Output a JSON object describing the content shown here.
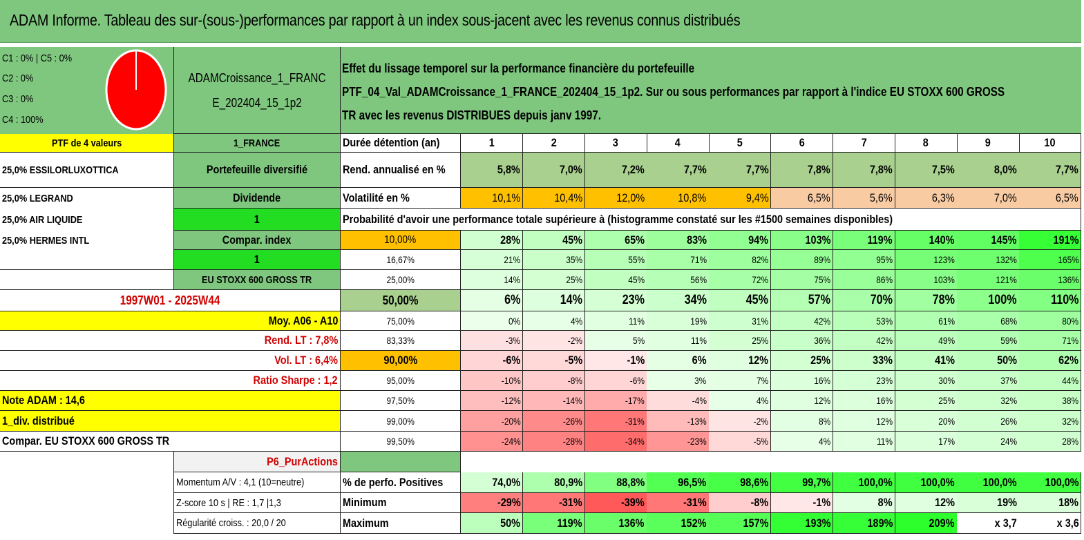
{
  "title": "ADAM Informe. Tableau des sur-(sous-)performances par rapport à un index sous-jacent avec les revenus connus distribués",
  "colors": {
    "green": "#7fc77f",
    "bright_green": "#22dd22",
    "yellow": "#ffff00",
    "orange": "#ffc000",
    "pie": "#ff0000"
  },
  "classes": {
    "line1": "C1 : 0% | C5 : 0%",
    "line2": "C2 : 0%",
    "line3": "C3 : 0%",
    "line4": "C4 : 100%"
  },
  "pie_chart": {
    "type": "pie",
    "slices": [
      {
        "label": "C4",
        "value": 100
      }
    ]
  },
  "portfolio": {
    "name_line1": "ADAMCroissance_1_FRANC",
    "name_line2": "E_202404_15_1p2",
    "count_label": "PTF de 4 valeurs",
    "country": "1_FRANCE",
    "holdings": [
      "25,0% ESSILORLUXOTTICA",
      "25,0% LEGRAND",
      "25,0% AIR LIQUIDE",
      "25,0% HERMES INTL"
    ]
  },
  "description": {
    "line1": "Effet du lissage temporel sur la performance financière du portefeuille",
    "line2": "PTF_04_Val_ADAMCroissance_1_FRANCE_202404_15_1p2. Sur ou sous performances par rapport à l'indice EU STOXX 600 GROSS",
    "line3": "TR avec les revenus DISTRIBUES depuis janv 1997."
  },
  "info": {
    "diversified": "Portefeuille diversifié",
    "dividend": "Dividende",
    "one_a": "1",
    "compar_index": "Compar. index",
    "one_b": "1",
    "index_name": "EU STOXX 600 GROSS TR",
    "period": "1997W01 - 2025W44",
    "avg": "Moy. A06 - A10",
    "rend_lt": "Rend. LT : 7,8%",
    "vol_lt": "Vol. LT : 6,4%",
    "sharpe": "Ratio Sharpe : 1,2",
    "note": "Note ADAM : 14,6",
    "div": "1_div. distribué",
    "compar_full": "Compar. EU STOXX 600 GROSS TR",
    "p6": "P6_PurActions",
    "momentum": "Momentum A/V : 4,1 (10=neutre)",
    "zscore": "Z-score 10 s | RE : 1,7 |1,3",
    "regularite": "Régularité croiss. : 20,0 / 20"
  },
  "table": {
    "duration_label": "Durée détention (an)",
    "years": [
      "1",
      "2",
      "3",
      "4",
      "5",
      "6",
      "7",
      "8",
      "9",
      "10"
    ],
    "rend_label": "Rend. annualisé en %",
    "rend": [
      "5,8%",
      "7,0%",
      "7,2%",
      "7,7%",
      "7,7%",
      "7,8%",
      "7,8%",
      "7,5%",
      "8,0%",
      "7,7%"
    ],
    "vol_label": "Volatilité en %",
    "vol": [
      "10,1%",
      "10,4%",
      "12,0%",
      "10,8%",
      "9,4%",
      "6,5%",
      "5,6%",
      "6,3%",
      "7,0%",
      "6,5%"
    ],
    "prob_title": "Probabilité d'avoir une performance totale supérieure à (histogramme constaté sur les #1500 semaines disponibles)",
    "prob_rows": [
      {
        "p": "10,00%",
        "v": [
          "28%",
          "45%",
          "65%",
          "83%",
          "94%",
          "103%",
          "119%",
          "140%",
          "145%",
          "191%"
        ]
      },
      {
        "p": "16,67%",
        "v": [
          "21%",
          "35%",
          "55%",
          "71%",
          "82%",
          "89%",
          "95%",
          "123%",
          "132%",
          "165%"
        ]
      },
      {
        "p": "25,00%",
        "v": [
          "14%",
          "25%",
          "45%",
          "56%",
          "72%",
          "75%",
          "86%",
          "103%",
          "121%",
          "136%"
        ]
      },
      {
        "p": "50,00%",
        "v": [
          "6%",
          "14%",
          "23%",
          "34%",
          "45%",
          "57%",
          "70%",
          "78%",
          "100%",
          "110%"
        ]
      },
      {
        "p": "75,00%",
        "v": [
          "0%",
          "4%",
          "11%",
          "19%",
          "31%",
          "42%",
          "53%",
          "61%",
          "68%",
          "80%"
        ]
      },
      {
        "p": "83,33%",
        "v": [
          "-3%",
          "-2%",
          "5%",
          "11%",
          "25%",
          "36%",
          "42%",
          "49%",
          "59%",
          "71%"
        ]
      },
      {
        "p": "90,00%",
        "v": [
          "-6%",
          "-5%",
          "-1%",
          "6%",
          "12%",
          "25%",
          "33%",
          "41%",
          "50%",
          "62%"
        ]
      },
      {
        "p": "95,00%",
        "v": [
          "-10%",
          "-8%",
          "-6%",
          "3%",
          "7%",
          "16%",
          "23%",
          "30%",
          "37%",
          "44%"
        ]
      },
      {
        "p": "97,50%",
        "v": [
          "-12%",
          "-14%",
          "-17%",
          "-4%",
          "4%",
          "12%",
          "16%",
          "25%",
          "32%",
          "38%"
        ]
      },
      {
        "p": "99,00%",
        "v": [
          "-20%",
          "-26%",
          "-31%",
          "-13%",
          "-2%",
          "8%",
          "12%",
          "20%",
          "26%",
          "32%"
        ]
      },
      {
        "p": "99,50%",
        "v": [
          "-24%",
          "-28%",
          "-34%",
          "-23%",
          "-5%",
          "4%",
          "11%",
          "17%",
          "24%",
          "28%"
        ]
      }
    ],
    "pos_label": "% de perfo. Positives",
    "pos": [
      "74,0%",
      "80,9%",
      "88,8%",
      "96,5%",
      "98,6%",
      "99,7%",
      "100,0%",
      "100,0%",
      "100,0%",
      "100,0%"
    ],
    "min_label": "Minimum",
    "min": [
      "-29%",
      "-31%",
      "-39%",
      "-31%",
      "-8%",
      "-1%",
      "8%",
      "12%",
      "19%",
      "18%"
    ],
    "max_label": "Maximum",
    "max": [
      "50%",
      "119%",
      "136%",
      "152%",
      "157%",
      "193%",
      "189%",
      "209%",
      "x 3,7",
      "x 3,6"
    ]
  }
}
